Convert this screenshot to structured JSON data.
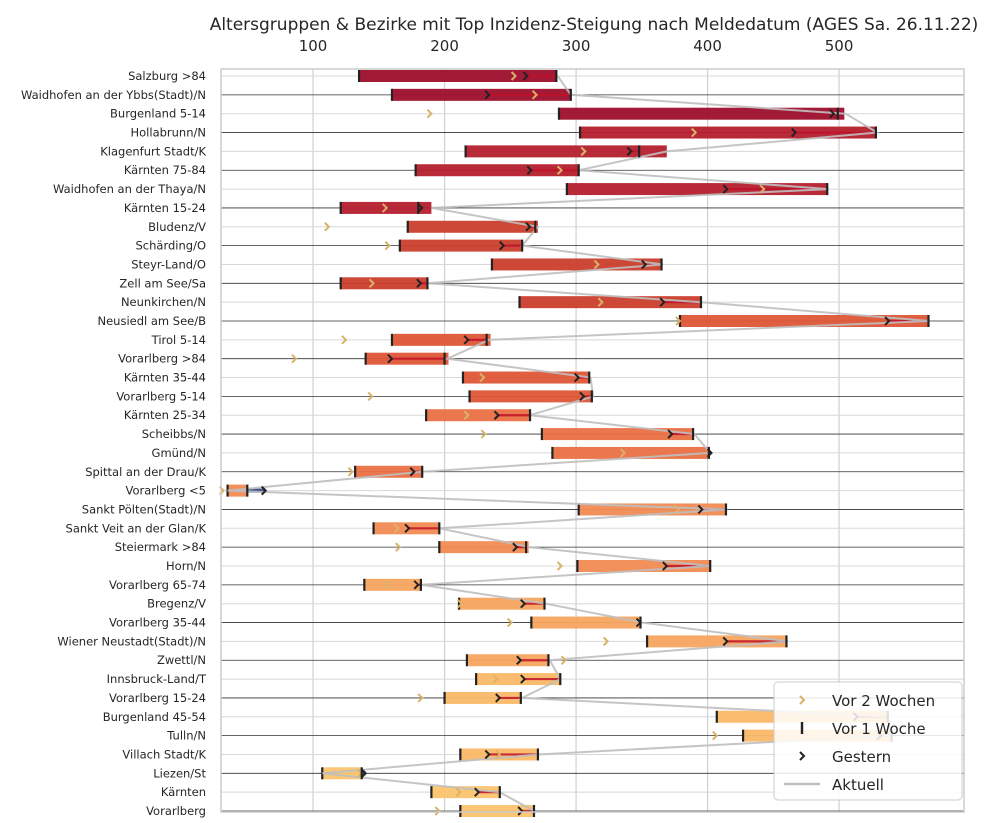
{
  "chart_data": {
    "type": "bar",
    "title": "Altersgruppen & Bezirke mit Top Inzidenz-Steigung nach Meldedatum (AGES Sa. 26.11.22)",
    "xlabel": "",
    "ylabel": "",
    "xlim": [
      30,
      595
    ],
    "xticks": [
      100,
      200,
      300,
      400,
      500
    ],
    "grid": true,
    "legend_position": "lower-right",
    "legend": {
      "vor2": "Vor 2 Wochen",
      "vor1": "Vor 1 Woche",
      "gestern": "Gestern",
      "aktuell": "Aktuell"
    },
    "colors": {
      "vor2": "#d9b36a",
      "gestern": "#222222",
      "aktuell_line": "#bfbfbf",
      "min_marker": "#222222",
      "reverse_bar": "#1f3a7a"
    },
    "categories": [
      "Salzburg >84",
      "Waidhofen an der Ybbs(Stadt)/N",
      "Burgenland 5-14",
      "Hollabrunn/N",
      "Klagenfurt Stadt/K",
      "Kärnten 75-84",
      "Waidhofen an der Thaya/N",
      "Kärnten 15-24",
      "Bludenz/V",
      "Schärding/O",
      "Steyr-Land/O",
      "Zell am See/Sa",
      "Neunkirchen/N",
      "Neusiedl am See/B",
      "Tirol 5-14",
      "Vorarlberg >84",
      "Kärnten 35-44",
      "Vorarlberg 5-14",
      "Kärnten 25-34",
      "Scheibbs/N",
      "Gmünd/N",
      "Spittal an der Drau/K",
      "Vorarlberg <5",
      "Sankt Pölten(Stadt)/N",
      "Sankt Veit an der Glan/K",
      "Steiermark >84",
      "Horn/N",
      "Vorarlberg 65-74",
      "Bregenz/V",
      "Vorarlberg 35-44",
      "Wiener Neustadt(Stadt)/N",
      "Zwettl/N",
      "Innsbruck-Land/T",
      "Vorarlberg 15-24",
      "Burgenland 45-54",
      "Tulln/N",
      "Villach Stadt/K",
      "Liezen/St",
      "Kärnten",
      "Vorarlberg"
    ],
    "min_values": [
      135,
      160,
      287,
      303,
      216,
      178,
      293,
      121,
      172,
      166,
      236,
      121,
      257,
      379,
      160,
      140,
      214,
      219,
      186,
      274,
      282,
      132,
      35,
      302,
      146,
      196,
      301,
      139,
      211,
      266,
      354,
      217,
      224,
      200,
      407,
      427,
      212,
      107,
      190,
      212
    ],
    "max_values": [
      285,
      296,
      504,
      528,
      369,
      302,
      491,
      190,
      271,
      259,
      365,
      187,
      395,
      568,
      235,
      203,
      310,
      312,
      265,
      389,
      401,
      183,
      50,
      414,
      196,
      264,
      402,
      182,
      276,
      349,
      460,
      279,
      288,
      258,
      537,
      540,
      271,
      137,
      242,
      268
    ],
    "vor_2_wochen": [
      254,
      270,
      190,
      391,
      307,
      289,
      443,
      156,
      112,
      158,
      317,
      146,
      320,
      379,
      125,
      87,
      230,
      145,
      218,
      231,
      337,
      130,
      32,
      378,
      165,
      166,
      289,
      158,
      213,
      251,
      324,
      292,
      240,
      183,
      470,
      407,
      242,
      137,
      212,
      196
    ],
    "vor_1_woche": [
      285,
      296,
      499,
      528,
      348,
      302,
      491,
      180,
      269,
      259,
      365,
      187,
      395,
      568,
      232,
      200,
      310,
      312,
      265,
      389,
      401,
      183,
      50,
      414,
      196,
      262,
      402,
      182,
      276,
      349,
      460,
      279,
      288,
      258,
      537,
      540,
      271,
      137,
      242,
      268
    ],
    "gestern": [
      263,
      234,
      496,
      467,
      342,
      266,
      415,
      183,
      265,
      245,
      353,
      182,
      367,
      538,
      218,
      160,
      302,
      306,
      241,
      373,
      403,
      177,
      64,
      396,
      173,
      255,
      369,
      180,
      261,
      349,
      415,
      258,
      261,
      242,
      514,
      532,
      234,
      140,
      226,
      259
    ],
    "aktuell": [
      286,
      296,
      505,
      529,
      369,
      302,
      492,
      190,
      271,
      259,
      366,
      187,
      395,
      569,
      234,
      202,
      311,
      313,
      265,
      390,
      402,
      183,
      35,
      415,
      196,
      265,
      402,
      182,
      277,
      350,
      461,
      280,
      288,
      259,
      537,
      540,
      271,
      107,
      242,
      268
    ]
  }
}
